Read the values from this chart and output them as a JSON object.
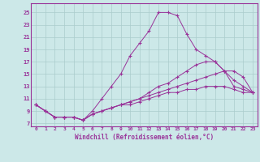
{
  "xlabel": "Windchill (Refroidissement éolien,°C)",
  "background_color": "#cce8e8",
  "line_color": "#993399",
  "grid_color": "#aacccc",
  "x_ticks": [
    0,
    1,
    2,
    3,
    4,
    5,
    6,
    7,
    8,
    9,
    10,
    11,
    12,
    13,
    14,
    15,
    16,
    17,
    18,
    19,
    20,
    21,
    22,
    23
  ],
  "y_ticks": [
    7,
    9,
    11,
    13,
    15,
    17,
    19,
    21,
    23,
    25
  ],
  "ylim": [
    6.5,
    26.5
  ],
  "xlim": [
    -0.5,
    23.5
  ],
  "lines": [
    {
      "x": [
        0,
        1,
        2,
        3,
        4,
        5,
        6,
        7,
        8,
        9,
        10,
        11,
        12,
        13,
        14,
        15,
        16,
        17,
        18,
        19,
        20,
        21,
        22,
        23
      ],
      "y": [
        10,
        9,
        8,
        8,
        8,
        7.5,
        9,
        11,
        13,
        15,
        18,
        20,
        22,
        25,
        25,
        24.5,
        21.5,
        19,
        18,
        17,
        15.5,
        13,
        12.5,
        12
      ]
    },
    {
      "x": [
        0,
        1,
        2,
        3,
        4,
        5,
        6,
        7,
        8,
        9,
        10,
        11,
        12,
        13,
        14,
        15,
        16,
        17,
        18,
        19,
        20,
        21,
        22,
        23
      ],
      "y": [
        10,
        9,
        8,
        8,
        8,
        7.5,
        8.5,
        9,
        9.5,
        10,
        10.5,
        11,
        12,
        13,
        13.5,
        14.5,
        15.5,
        16.5,
        17,
        17,
        15.5,
        14,
        13,
        12
      ]
    },
    {
      "x": [
        0,
        1,
        2,
        3,
        4,
        5,
        6,
        7,
        8,
        9,
        10,
        11,
        12,
        13,
        14,
        15,
        16,
        17,
        18,
        19,
        20,
        21,
        22,
        23
      ],
      "y": [
        10,
        9,
        8,
        8,
        8,
        7.5,
        8.5,
        9,
        9.5,
        10,
        10.5,
        11,
        11.5,
        12,
        12.5,
        13,
        13.5,
        14,
        14.5,
        15,
        15.5,
        15.5,
        14.5,
        12
      ]
    },
    {
      "x": [
        0,
        1,
        2,
        3,
        4,
        5,
        6,
        7,
        8,
        9,
        10,
        11,
        12,
        13,
        14,
        15,
        16,
        17,
        18,
        19,
        20,
        21,
        22,
        23
      ],
      "y": [
        10,
        9,
        8,
        8,
        8,
        7.5,
        8.5,
        9,
        9.5,
        10,
        10,
        10.5,
        11,
        11.5,
        12,
        12,
        12.5,
        12.5,
        13,
        13,
        13,
        12.5,
        12,
        12
      ]
    }
  ]
}
